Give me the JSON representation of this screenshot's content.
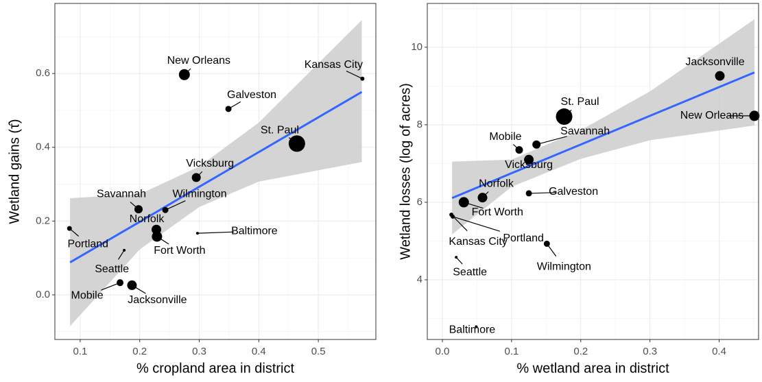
{
  "chart_data": [
    {
      "type": "scatter",
      "x_label": "% cropland area in district",
      "y_label": "Wetland gains (τ̂)",
      "labels": [
        "Portland",
        "Seattle",
        "Mobile",
        "Jacksonville",
        "Savannah",
        "Norfolk",
        "Fort Worth",
        "Wilmington",
        "Baltimore",
        "Vicksburg",
        "New Orleans",
        "Galveston",
        "St. Paul",
        "Kansas City"
      ],
      "x": [
        0.082,
        0.174,
        0.167,
        0.187,
        0.198,
        0.228,
        0.229,
        0.243,
        0.297,
        0.295,
        0.275,
        0.349,
        0.464,
        0.574
      ],
      "values": [
        0.18,
        0.121,
        0.033,
        0.026,
        0.232,
        0.177,
        0.158,
        0.23,
        0.167,
        0.318,
        0.597,
        0.504,
        0.41,
        0.586
      ],
      "sizes": [
        3.5,
        2,
        5,
        7,
        6,
        7,
        7.5,
        4.5,
        2,
        6.5,
        8,
        4.5,
        12,
        3
      ],
      "color": "#000000",
      "fit": {
        "color": "#3366ff",
        "band_color": "#cccccc",
        "x": [
          0.083,
          0.2,
          0.3,
          0.4,
          0.573
        ],
        "values": [
          0.088,
          0.198,
          0.293,
          0.387,
          0.55
        ],
        "lower": [
          -0.085,
          0.123,
          0.238,
          0.307,
          0.36
        ],
        "upper": [
          0.262,
          0.273,
          0.348,
          0.467,
          0.745
        ]
      },
      "xlim": [
        0.0575,
        0.5966
      ],
      "ylim": [
        -0.121,
        0.79
      ],
      "xticks": [
        0.1,
        0.2,
        0.3,
        0.4,
        0.5
      ],
      "yticks": [
        {
          "value": 0,
          "label": "0.0"
        },
        0.2,
        0.4,
        0.6
      ],
      "grid": true
    },
    {
      "type": "scatter",
      "x_label": "% wetland area in district",
      "y_label": "Wetland losses (log of acres)",
      "labels": [
        "Jacksonville",
        "New Orleans",
        "St. Paul",
        "Savannah",
        "Mobile",
        "Vicksburg",
        "Galveston",
        "Norfolk",
        "Fort Worth",
        "Kansas City",
        "Portland",
        "Wilmington",
        "Seattle",
        "Baltimore"
      ],
      "x": [
        0.401,
        0.451,
        0.176,
        0.136,
        0.111,
        0.125,
        0.125,
        0.058,
        0.031,
        0.013,
        0.015,
        0.151,
        0.02,
        0.049
      ],
      "values": [
        9.26,
        8.23,
        8.21,
        7.49,
        7.35,
        7.1,
        6.23,
        6.12,
        6.0,
        5.68,
        5.63,
        4.93,
        4.58,
        2.79
      ],
      "sizes": [
        7,
        7.5,
        12,
        6,
        5.5,
        7,
        4.5,
        7,
        7.5,
        3,
        3,
        4.5,
        2,
        2
      ],
      "color": "#000000",
      "fit": {
        "color": "#3366ff",
        "band_color": "#cccccc",
        "x": [
          0.014,
          0.1,
          0.2,
          0.3,
          0.451
        ],
        "values": [
          6.11,
          6.75,
          7.49,
          8.23,
          9.35
        ],
        "lower": [
          5.17,
          6.4,
          7.12,
          7.6,
          7.98
        ],
        "upper": [
          7.05,
          7.1,
          7.86,
          8.86,
          10.72
        ]
      },
      "xlim": [
        -0.0218,
        0.457
      ],
      "ylim": [
        2.46,
        11.13
      ],
      "xticks": [
        {
          "value": 0,
          "label": "0.0"
        },
        0.1,
        0.2,
        0.3,
        0.4
      ],
      "yticks": [
        4,
        6,
        8,
        10
      ],
      "grid": true
    }
  ]
}
